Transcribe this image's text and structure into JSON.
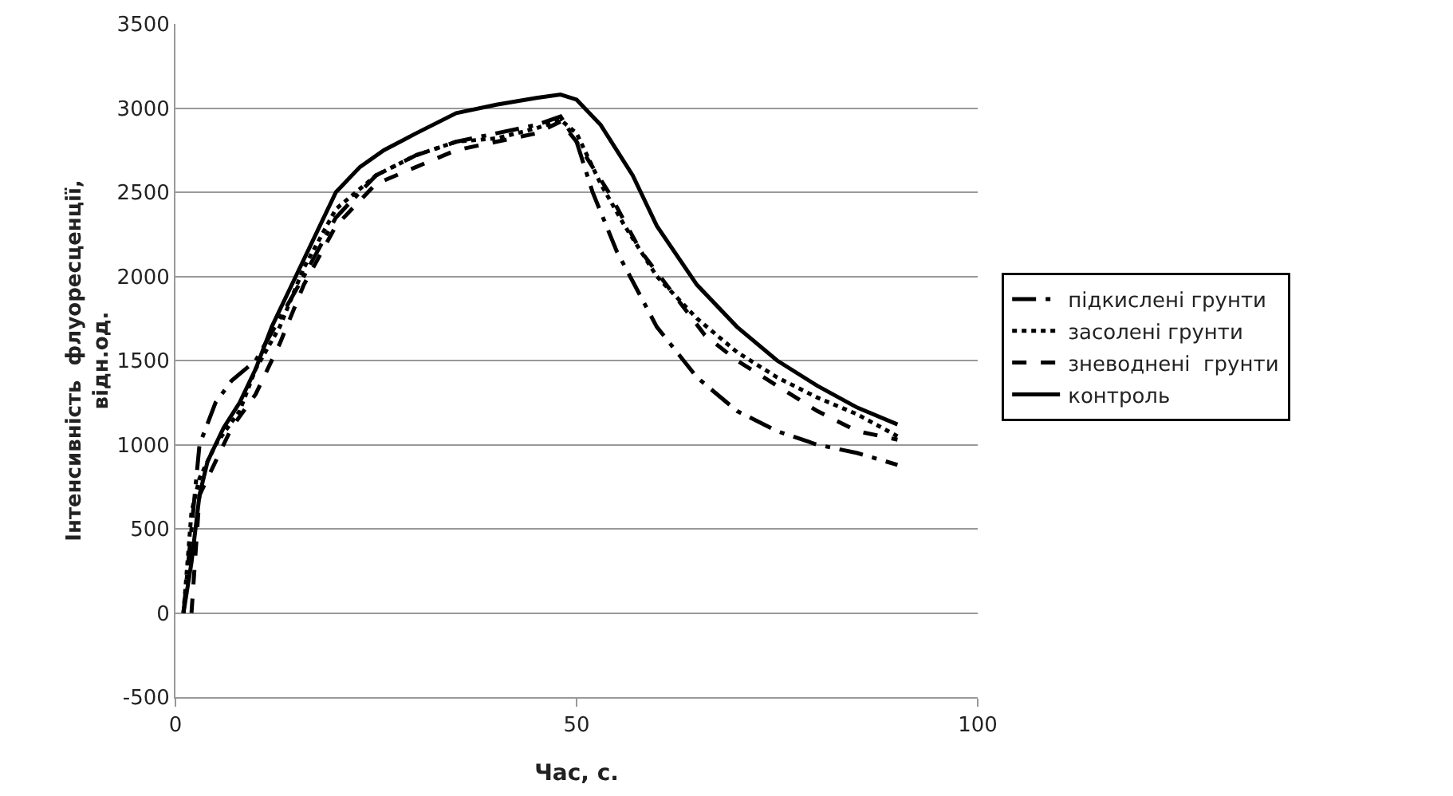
{
  "chart_data": {
    "type": "line",
    "xlabel": "Час, с.",
    "ylabel": "Інтенсивність  флуоресценції,\nвідн.од.",
    "xlim": [
      0,
      100
    ],
    "xticks": [
      0,
      50,
      100
    ],
    "ylim": [
      -500,
      3500
    ],
    "yticks": [
      -500,
      0,
      500,
      1000,
      1500,
      2000,
      2500,
      3000,
      3500
    ],
    "grid": "y",
    "legend": "right",
    "marker": "none",
    "series": [
      {
        "name": "підкислені грунти",
        "color": "#000000",
        "line_style": "longdashdot",
        "x": [
          1,
          2,
          3,
          5,
          7,
          10,
          13,
          16,
          20,
          25,
          30,
          35,
          40,
          45,
          48,
          50,
          52,
          55,
          60,
          65,
          70,
          75,
          80,
          85,
          90
        ],
        "values": [
          0,
          500,
          1000,
          1250,
          1380,
          1500,
          1750,
          2000,
          2350,
          2600,
          2720,
          2800,
          2850,
          2900,
          2950,
          2800,
          2500,
          2150,
          1700,
          1400,
          1200,
          1080,
          1000,
          950,
          880
        ]
      },
      {
        "name": "засолені грунти",
        "color": "#000000",
        "line_style": "dotted",
        "x": [
          1,
          2,
          3,
          5,
          8,
          10,
          13,
          16,
          20,
          25,
          30,
          35,
          40,
          45,
          48,
          50,
          53,
          56,
          60,
          65,
          70,
          75,
          80,
          85,
          90
        ],
        "values": [
          0,
          600,
          800,
          1000,
          1200,
          1450,
          1700,
          2050,
          2400,
          2600,
          2720,
          2800,
          2820,
          2880,
          2930,
          2850,
          2550,
          2300,
          2000,
          1750,
          1550,
          1400,
          1280,
          1180,
          1050
        ]
      },
      {
        "name": "зневоднені  грунти",
        "color": "#000000",
        "line_style": "dashed",
        "x": [
          2,
          3,
          5,
          7,
          10,
          13,
          16,
          20,
          25,
          30,
          35,
          40,
          45,
          48,
          50,
          54,
          58,
          62,
          66,
          70,
          75,
          80,
          85,
          90
        ],
        "values": [
          0,
          700,
          900,
          1100,
          1300,
          1600,
          1950,
          2300,
          2550,
          2650,
          2750,
          2800,
          2850,
          2920,
          2800,
          2500,
          2150,
          1900,
          1650,
          1500,
          1350,
          1200,
          1080,
          1030
        ]
      },
      {
        "name": "контроль",
        "color": "#000000",
        "line_style": "solid",
        "x": [
          1,
          2,
          3,
          4,
          6,
          8,
          10,
          12,
          15,
          18,
          20,
          23,
          26,
          30,
          35,
          40,
          45,
          48,
          50,
          53,
          57,
          60,
          65,
          70,
          75,
          80,
          85,
          90
        ],
        "values": [
          0,
          300,
          700,
          900,
          1100,
          1250,
          1450,
          1700,
          2000,
          2300,
          2500,
          2650,
          2750,
          2850,
          2970,
          3020,
          3060,
          3080,
          3050,
          2900,
          2600,
          2300,
          1950,
          1700,
          1500,
          1350,
          1220,
          1120
        ]
      }
    ]
  }
}
